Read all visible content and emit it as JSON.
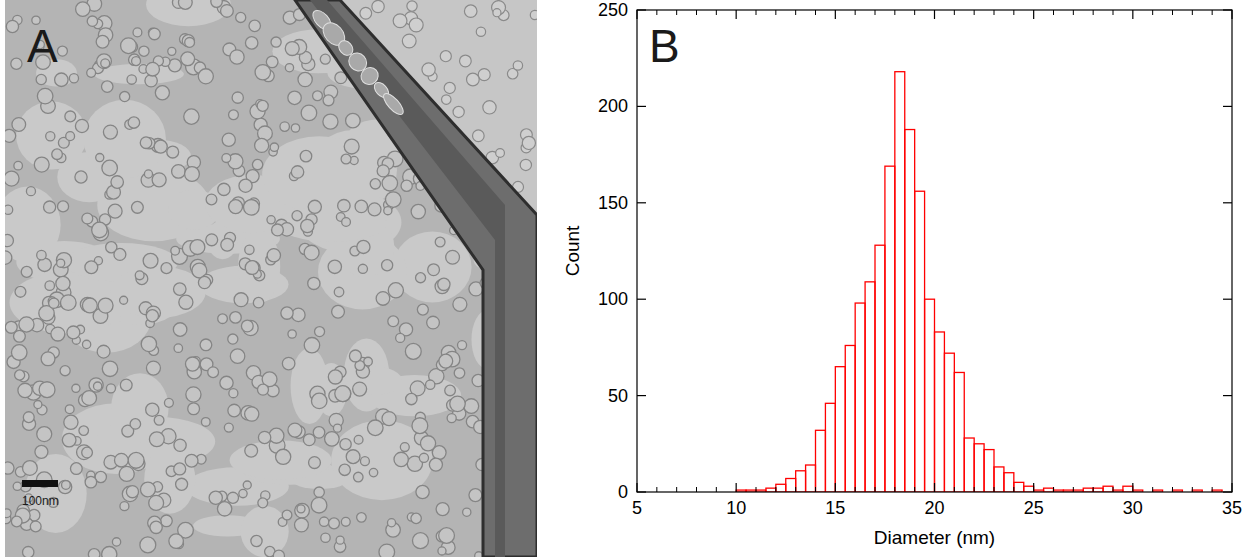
{
  "image_panel": {
    "label": "A",
    "scale_bar_label": "100nm"
  },
  "chart_data": {
    "type": "histogram",
    "panel_label": "B",
    "x_label": "Diameter (nm)",
    "y_label": "Count",
    "bins": [
      10,
      10.5,
      11,
      11.5,
      12,
      12.5,
      13,
      13.5,
      14,
      14.5,
      15,
      15.5,
      16,
      16.5,
      17,
      17.5,
      18,
      18.5,
      19,
      19.5,
      20,
      20.5,
      21,
      21.5,
      22,
      22.5,
      23,
      23.5,
      24,
      24.5,
      25,
      25.5,
      26,
      26.5,
      27,
      27.5,
      28,
      28.5,
      29,
      29.5,
      30,
      30.5,
      31,
      31.5,
      32,
      32.5,
      33,
      33.5,
      34,
      34.5,
      35
    ],
    "counts": [
      1,
      1,
      1,
      2,
      4,
      7,
      11,
      14,
      32,
      46,
      65,
      76,
      98,
      109,
      128,
      169,
      218,
      188,
      156,
      100,
      83,
      72,
      62,
      28,
      25,
      22,
      13,
      10,
      5,
      3,
      1,
      2,
      1,
      1,
      1,
      2,
      2,
      3,
      1,
      3,
      1,
      0,
      1,
      0,
      1,
      0,
      1,
      0,
      1,
      0
    ],
    "color": "#ff0000",
    "xlim": [
      5,
      35
    ],
    "xticks": [
      5,
      10,
      15,
      20,
      25,
      30,
      35
    ],
    "ylim": [
      0,
      250
    ],
    "yticks": [
      0,
      50,
      100,
      150,
      200,
      250
    ],
    "grid": false
  }
}
